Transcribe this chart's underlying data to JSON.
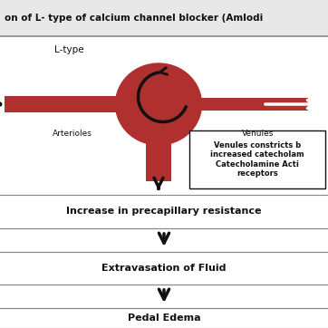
{
  "title": "on of L- type of calcium channel blocker (Amlodi",
  "bg_color": "#e8e8e8",
  "vessel_color": "#b03030",
  "arrow_color": "#111111",
  "box_text": "Venules constricts b\nincreased catecholam\nCatecholamine Acti\nreceptors",
  "label_arterioles": "Arterioles",
  "label_venules": "Venules",
  "label_ltype": "L-type",
  "step1": "Increase in precapillary resistance",
  "step2": "Extravasation of Fluid",
  "step3": "Pedal Edema",
  "section_bg": "#ffffff",
  "line_color": "#888888",
  "text_color": "#111111",
  "white": "#ffffff",
  "title_fontsize": 7.5,
  "label_fontsize": 6.5,
  "step_fontsize": 8.0
}
